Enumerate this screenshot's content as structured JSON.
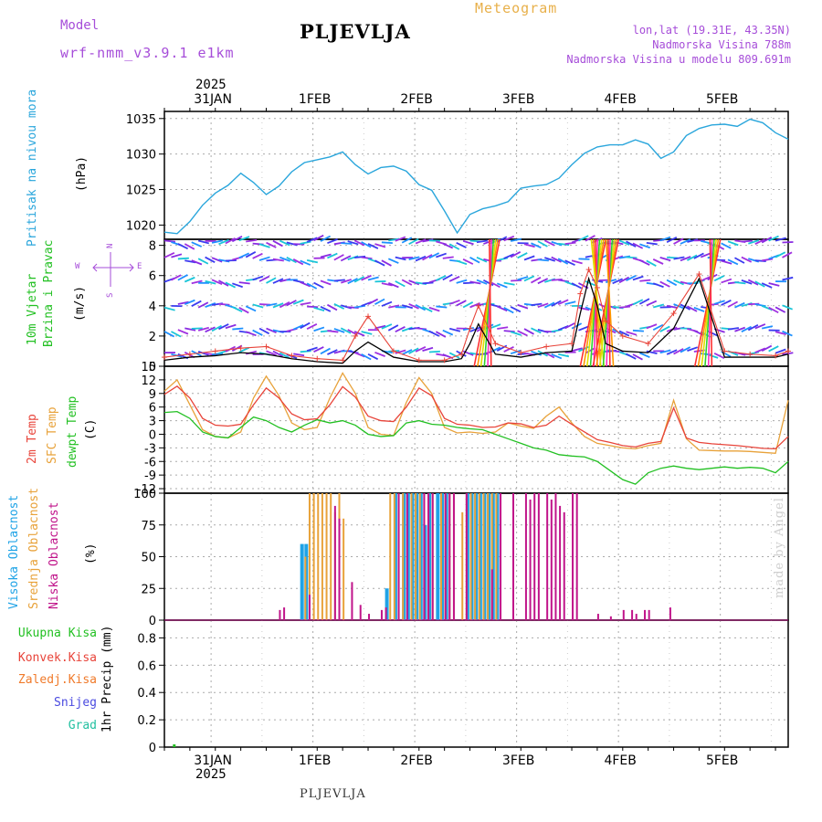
{
  "header": {
    "model_label": "Model",
    "model_name": "wrf-nmm_v3.9.1 e1km",
    "location": "PLJEVLJA",
    "product": "Meteogram",
    "coords": "lon,lat (19.31E, 43.35N)",
    "elevation": "Nadmorska Visina 788m",
    "model_elevation": "Nadmorska Visina u modelu 809.691m"
  },
  "footer": {
    "location": "PLJEVLJA",
    "credit": "made by Angel"
  },
  "time_axis": {
    "top_year": "2025",
    "bottom_year": "2025",
    "day_labels": [
      "31JAN",
      "1FEB",
      "2FEB",
      "3FEB",
      "4FEB",
      "5FEB"
    ]
  },
  "panels": {
    "pressure": {
      "title": "Pritisak na nivou mora",
      "unit": "(hPa)"
    },
    "wind": {
      "title_1": "10m Vjetar",
      "title_2": "Brzina i Pravac",
      "unit": "(m/s)",
      "compass": "N",
      "compass_e": "E",
      "compass_w": "W",
      "compass_s": "S"
    },
    "temp": {
      "label_2m": "2m Temp",
      "label_sfc": "SFC Temp",
      "label_dewpt": "dewpt Temp",
      "unit": "(C)"
    },
    "cloud": {
      "label_high": "Visoka Oblacnost",
      "label_mid": "Srednja Oblacnost",
      "label_low": "Niska Oblacnost",
      "unit": "(%)"
    },
    "precip": {
      "labels": [
        "Ukupna Kisa",
        "Konvek.Kisa",
        "Zaledj.Kisa",
        "Snijeg",
        "Grad"
      ],
      "unit": "1hr Precip (mm)"
    }
  },
  "colors": {
    "pressure": "#2aa6dc",
    "t2m": "#e8443a",
    "tsfc": "#e8a23a",
    "dewpt": "#22c022",
    "cloud_high": "#1fa3e6",
    "cloud_mid": "#e8a23a",
    "cloud_low": "#c0148a",
    "wind_speed": "#000000",
    "gust": "#e8443a",
    "precip_total": "#22c022",
    "precip_conv": "#e8443a",
    "precip_frz": "#f07a2a",
    "precip_snow": "#4a4ae0",
    "precip_hail": "#22c0a0"
  },
  "chart_data": [
    {
      "type": "line",
      "series": [
        {
          "name": "Pritisak na nivou mora",
          "x": [
            0,
            3,
            6,
            9,
            12,
            15,
            18,
            21,
            24,
            27,
            30,
            33,
            36,
            39,
            42,
            45,
            48,
            51,
            54,
            57,
            60,
            63,
            66,
            69,
            72,
            75,
            78,
            81,
            84,
            87,
            90,
            93,
            96,
            99,
            102,
            105,
            108,
            111,
            114,
            117,
            120,
            123,
            126,
            129,
            132,
            135,
            138,
            141,
            144,
            147
          ],
          "values": [
            1019.0,
            1018.8,
            1020.5,
            1022.8,
            1024.5,
            1025.6,
            1027.3,
            1026.0,
            1024.3,
            1025.5,
            1027.5,
            1028.8,
            1029.2,
            1029.6,
            1030.3,
            1028.5,
            1027.2,
            1028.1,
            1028.3,
            1027.6,
            1025.7,
            1024.9,
            1022.0,
            1018.9,
            1021.5,
            1022.3,
            1022.7,
            1023.3,
            1025.2,
            1025.5,
            1025.7,
            1026.6,
            1028.5,
            1030.1,
            1031.0,
            1031.3,
            1031.3,
            1032.0,
            1031.4,
            1029.4,
            1030.3,
            1032.6,
            1033.6,
            1034.1,
            1034.2,
            1033.9,
            1034.9,
            1034.4,
            1033.0,
            1032.1
          ]
        }
      ],
      "ylim": [
        1018,
        1036
      ],
      "yticks": [
        1020,
        1025,
        1030,
        1035
      ]
    },
    {
      "type": "line",
      "series": [
        {
          "name": "wind_speed",
          "x": [
            0,
            6,
            12,
            18,
            24,
            30,
            36,
            42,
            45,
            48,
            54,
            60,
            66,
            70,
            72,
            74,
            78,
            84,
            90,
            96,
            98,
            100,
            102,
            104,
            108,
            114,
            120,
            126,
            132,
            138,
            144,
            147
          ],
          "values": [
            0.4,
            0.6,
            0.7,
            0.9,
            0.8,
            0.5,
            0.3,
            0.2,
            1.0,
            1.6,
            0.6,
            0.3,
            0.3,
            0.5,
            1.5,
            2.8,
            0.8,
            0.6,
            0.9,
            1.0,
            3.5,
            5.8,
            4.0,
            1.5,
            1.0,
            0.9,
            2.5,
            5.8,
            0.6,
            0.6,
            0.6,
            0.8
          ]
        },
        {
          "name": "gust",
          "x": [
            0,
            6,
            12,
            18,
            24,
            30,
            36,
            42,
            45,
            48,
            54,
            60,
            66,
            70,
            72,
            74,
            78,
            84,
            90,
            96,
            98,
            100,
            102,
            104,
            108,
            114,
            120,
            126,
            132,
            138,
            144,
            147
          ],
          "values": [
            0.6,
            0.8,
            1.0,
            1.2,
            1.3,
            0.7,
            0.5,
            0.4,
            2.0,
            3.3,
            1.0,
            0.4,
            0.4,
            0.8,
            2.5,
            4.0,
            1.5,
            0.9,
            1.3,
            1.5,
            4.8,
            6.4,
            5.2,
            3.0,
            2.0,
            1.5,
            3.5,
            6.1,
            1.0,
            0.8,
            0.7,
            1.0
          ]
        }
      ],
      "ylim": [
        0,
        8.4
      ],
      "yticks": [
        0,
        2,
        4,
        6,
        8
      ]
    },
    {
      "type": "line",
      "series": [
        {
          "name": "2m Temp",
          "x": [
            0,
            3,
            6,
            9,
            12,
            15,
            18,
            21,
            24,
            27,
            30,
            33,
            36,
            39,
            42,
            45,
            48,
            51,
            54,
            57,
            60,
            63,
            66,
            69,
            72,
            75,
            78,
            81,
            84,
            87,
            90,
            93,
            96,
            99,
            102,
            105,
            108,
            111,
            114,
            117,
            120,
            123,
            126,
            129,
            132,
            135,
            138,
            141,
            144,
            147
          ],
          "values": [
            8.8,
            10.6,
            8.0,
            3.5,
            2.0,
            1.8,
            2.2,
            6.5,
            10.2,
            8.0,
            4.5,
            3.2,
            3.4,
            6.5,
            10.5,
            8.2,
            4.0,
            3.0,
            2.8,
            6.0,
            10.2,
            8.5,
            3.5,
            2.2,
            2.0,
            1.5,
            1.6,
            2.5,
            2.3,
            1.5,
            2.0,
            4.0,
            2.2,
            0.5,
            -1.2,
            -1.8,
            -2.5,
            -2.8,
            -2.0,
            -1.6,
            5.8,
            -0.8,
            -1.8,
            -2.1,
            -2.3,
            -2.5,
            -2.8,
            -3.1,
            -3.2,
            -0.5
          ]
        },
        {
          "name": "SFC Temp",
          "x": [
            0,
            3,
            6,
            9,
            12,
            15,
            18,
            21,
            24,
            27,
            30,
            33,
            36,
            39,
            42,
            45,
            48,
            51,
            54,
            57,
            60,
            63,
            66,
            69,
            72,
            75,
            78,
            81,
            84,
            87,
            90,
            93,
            96,
            99,
            102,
            105,
            108,
            111,
            114,
            117,
            120,
            123,
            126,
            129,
            132,
            135,
            138,
            141,
            144,
            147
          ],
          "values": [
            9.5,
            12.0,
            6.5,
            1.0,
            -0.5,
            -0.8,
            0.5,
            8.0,
            12.8,
            8.5,
            2.5,
            1.0,
            1.5,
            8.0,
            13.5,
            9.0,
            1.5,
            0.0,
            -0.3,
            7.0,
            12.5,
            9.0,
            1.5,
            0.3,
            0.5,
            0.2,
            0.5,
            2.5,
            1.8,
            1.3,
            4.0,
            6.0,
            2.5,
            -0.5,
            -2.0,
            -2.5,
            -3.0,
            -3.2,
            -2.5,
            -2.0,
            7.5,
            -1.0,
            -3.5,
            -3.6,
            -3.7,
            -3.7,
            -3.8,
            -4.0,
            -4.2,
            7.5
          ]
        },
        {
          "name": "dewpt Temp",
          "x": [
            0,
            3,
            6,
            9,
            12,
            15,
            18,
            21,
            24,
            27,
            30,
            33,
            36,
            39,
            42,
            45,
            48,
            51,
            54,
            57,
            60,
            63,
            66,
            69,
            72,
            75,
            78,
            81,
            84,
            87,
            90,
            93,
            96,
            99,
            102,
            105,
            108,
            111,
            114,
            117,
            120,
            123,
            126,
            129,
            132,
            135,
            138,
            141,
            144,
            147
          ],
          "values": [
            4.8,
            5.0,
            3.5,
            0.5,
            -0.5,
            -0.8,
            1.5,
            3.8,
            3.0,
            1.5,
            0.5,
            2.0,
            3.2,
            2.5,
            3.0,
            2.0,
            0.0,
            -0.5,
            -0.3,
            2.5,
            3.0,
            2.2,
            2.0,
            1.5,
            1.2,
            1.0,
            0.0,
            -1.0,
            -2.0,
            -3.0,
            -3.5,
            -4.5,
            -4.8,
            -5.0,
            -6.0,
            -8.0,
            -10.0,
            -11.0,
            -8.5,
            -7.5,
            -7.0,
            -7.5,
            -7.8,
            -7.5,
            -7.2,
            -7.5,
            -7.3,
            -7.5,
            -8.5,
            -6.0
          ]
        }
      ],
      "ylim": [
        -13,
        15
      ],
      "yticks": [
        -12,
        -9,
        -6,
        -3,
        0,
        3,
        6,
        9,
        12,
        15
      ]
    },
    {
      "type": "bar",
      "series": [
        {
          "name": "Visoka Oblacnost",
          "x": [
            32,
            33,
            52,
            54,
            56,
            57,
            58,
            59,
            60,
            61,
            62,
            64,
            65,
            66,
            71,
            72,
            73,
            74,
            75,
            76,
            77,
            78
          ],
          "values": [
            60,
            60,
            25,
            100,
            100,
            100,
            100,
            100,
            100,
            75,
            100,
            100,
            100,
            100,
            100,
            100,
            100,
            100,
            100,
            100,
            100,
            100
          ]
        },
        {
          "name": "Srednja Oblacnost",
          "x": [
            33,
            34,
            35,
            36,
            37,
            38,
            39,
            40,
            41,
            42,
            53,
            54,
            55,
            56,
            58,
            59,
            60,
            61,
            62,
            63,
            65,
            66,
            67,
            68,
            70,
            71,
            72,
            73,
            74,
            75,
            76,
            77,
            78,
            82
          ],
          "values": [
            50,
            100,
            100,
            100,
            100,
            100,
            100,
            85,
            100,
            80,
            100,
            100,
            100,
            100,
            100,
            100,
            100,
            100,
            100,
            100,
            100,
            100,
            100,
            100,
            85,
            100,
            100,
            100,
            100,
            100,
            100,
            100,
            100,
            100
          ]
        },
        {
          "name": "Niska Oblacnost",
          "x": [
            27,
            28,
            34,
            40,
            41,
            44,
            46,
            48,
            51,
            52,
            55,
            57,
            61,
            62,
            63,
            66,
            67,
            68,
            71,
            77,
            79,
            82,
            85,
            86,
            87,
            88,
            90,
            91,
            92,
            93,
            94,
            96,
            97,
            102,
            105,
            108,
            110,
            111,
            113,
            114,
            119
          ],
          "values": [
            8,
            10,
            20,
            90,
            80,
            30,
            12,
            5,
            8,
            10,
            100,
            100,
            100,
            100,
            100,
            100,
            100,
            100,
            100,
            40,
            100,
            100,
            100,
            95,
            100,
            100,
            100,
            95,
            100,
            90,
            85,
            100,
            100,
            5,
            3,
            8,
            8,
            5,
            8,
            8,
            10
          ]
        }
      ],
      "ylim": [
        0,
        100
      ],
      "yticks": [
        0,
        25,
        50,
        75,
        100
      ]
    },
    {
      "type": "bar",
      "series": [
        {
          "name": "Ukupna Kisa",
          "x": [
            2
          ],
          "values": [
            0.02
          ]
        }
      ],
      "ylim": [
        0,
        0.93
      ],
      "yticks": [
        0,
        0.2,
        0.4,
        0.6,
        0.8
      ]
    }
  ]
}
